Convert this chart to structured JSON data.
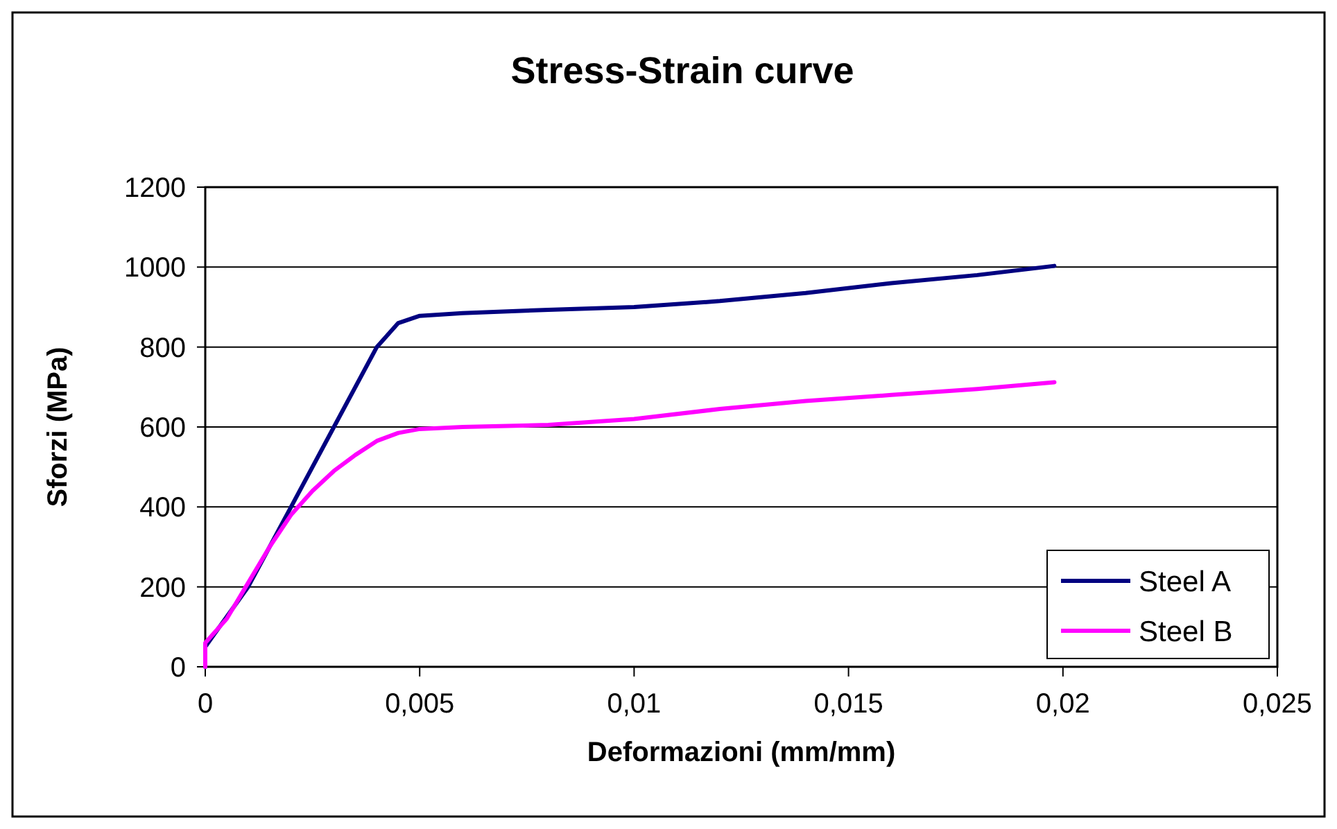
{
  "chart_data": {
    "type": "line",
    "title": "Stress-Strain curve",
    "xlabel": "Deformazioni (mm/mm)",
    "ylabel": "Sforzi (MPa)",
    "xlim": [
      0,
      0.025
    ],
    "xticks": [
      0,
      {
        "value": 0.005,
        "label": "0,005"
      },
      {
        "value": 0.01,
        "label": "0,01"
      },
      {
        "value": 0.015,
        "label": "0,015"
      },
      {
        "value": 0.02,
        "label": "0,02"
      },
      {
        "value": 0.025,
        "label": "0,025"
      }
    ],
    "ylim": [
      0,
      1200
    ],
    "yticks": [
      0,
      200,
      400,
      600,
      800,
      1000,
      1200
    ],
    "grid": "y",
    "legend": "bottom right",
    "marker": "none",
    "line_style": "solid",
    "series": [
      {
        "name": "Steel A",
        "color": "#000080",
        "x": [
          0,
          0,
          0.0002,
          0.001,
          0.002,
          0.003,
          0.004,
          0.0045,
          0.005,
          0.006,
          0.008,
          0.01,
          0.012,
          0.014,
          0.016,
          0.018,
          0.0198
        ],
        "values": [
          0,
          50,
          80,
          200,
          400,
          600,
          800,
          860,
          878,
          885,
          893,
          900,
          915,
          935,
          960,
          980,
          1003
        ]
      },
      {
        "name": "Steel B",
        "color": "#ff00ff",
        "x": [
          0,
          0,
          0.0005,
          0.001,
          0.0015,
          0.002,
          0.0025,
          0.003,
          0.0035,
          0.004,
          0.0045,
          0.005,
          0.006,
          0.008,
          0.01,
          0.012,
          0.014,
          0.016,
          0.018,
          0.0198
        ],
        "values": [
          0,
          60,
          120,
          210,
          300,
          380,
          440,
          490,
          530,
          565,
          585,
          595,
          600,
          605,
          620,
          645,
          665,
          680,
          695,
          712
        ]
      }
    ]
  }
}
